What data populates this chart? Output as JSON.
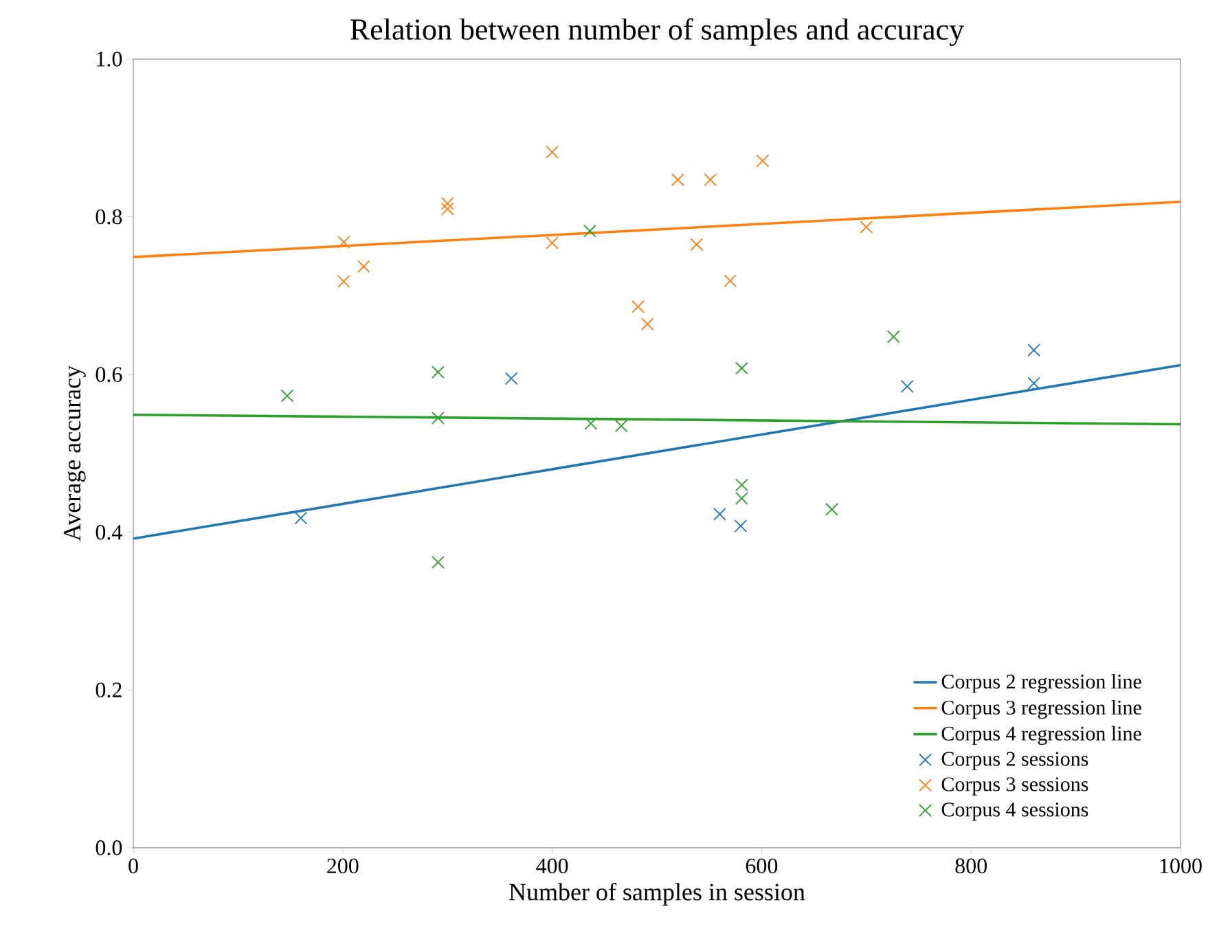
{
  "chart_data": {
    "type": "scatter",
    "title": "Relation between number of samples and accuracy",
    "xlabel": "Number of samples in session",
    "ylabel": "Average accuracy",
    "xlim": [
      0,
      1000
    ],
    "ylim": [
      0.0,
      1.0
    ],
    "xticks": [
      0,
      200,
      400,
      600,
      800,
      1000
    ],
    "yticks": [
      {
        "value": 0.0,
        "label": "0.0"
      },
      0.2,
      0.4,
      0.6,
      0.8,
      {
        "value": 1.0,
        "label": "1.0"
      }
    ],
    "legend": "bottom right",
    "grid": false,
    "series": [
      {
        "name": "Corpus 2 regression line",
        "type": "line",
        "marker": "none",
        "color": "#1f77b4",
        "x": [
          0,
          1000
        ],
        "values": [
          0.392,
          0.612
        ]
      },
      {
        "name": "Corpus 3 regression line",
        "type": "line",
        "marker": "none",
        "color": "#ff7f0e",
        "x": [
          0,
          1000
        ],
        "values": [
          0.749,
          0.819
        ]
      },
      {
        "name": "Corpus 4 regression line",
        "type": "line",
        "marker": "none",
        "color": "#2ca02c",
        "x": [
          0,
          1000
        ],
        "values": [
          0.549,
          0.537
        ]
      },
      {
        "name": "Corpus 2 sessions",
        "marker": "cross",
        "color": "#1f77b4",
        "x": [
          160,
          361,
          560,
          580,
          739,
          860,
          860
        ],
        "values": [
          0.418,
          0.595,
          0.423,
          0.408,
          0.585,
          0.631,
          0.589
        ]
      },
      {
        "name": "Corpus 3 sessions",
        "marker": "cross",
        "color": "#ff7f0e",
        "x": [
          201,
          201,
          220,
          300,
          300,
          400,
          400,
          520,
          551,
          601,
          482,
          491,
          538,
          570,
          700
        ],
        "values": [
          0.768,
          0.718,
          0.737,
          0.817,
          0.81,
          0.882,
          0.767,
          0.847,
          0.847,
          0.871,
          0.686,
          0.664,
          0.765,
          0.719,
          0.787
        ]
      },
      {
        "name": "Corpus 4 sessions",
        "marker": "cross",
        "color": "#2ca02c",
        "x": [
          147,
          291,
          291,
          291,
          436,
          437,
          466,
          581,
          581,
          581,
          667,
          726
        ],
        "values": [
          0.573,
          0.603,
          0.545,
          0.362,
          0.782,
          0.538,
          0.535,
          0.608,
          0.46,
          0.443,
          0.429,
          0.648
        ]
      }
    ]
  }
}
